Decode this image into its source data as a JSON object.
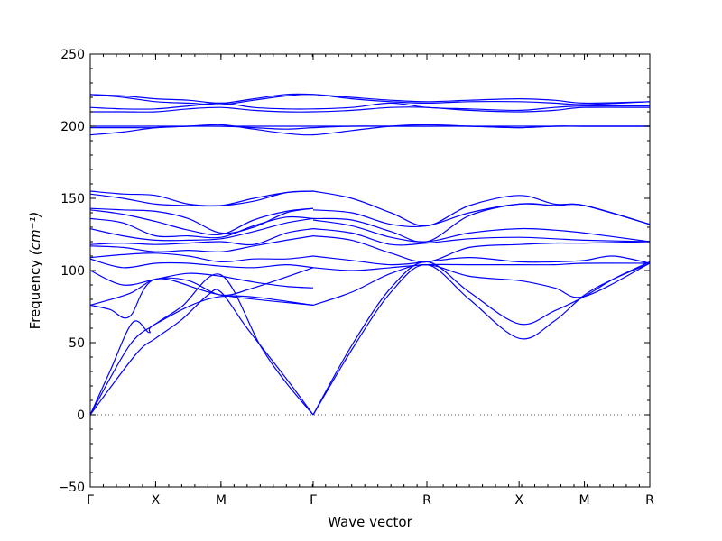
{
  "chart_data": {
    "type": "line",
    "title": "",
    "xlabel": "Wave vector",
    "ylabel_text": "Frequency",
    "ylabel_unit": "(cm⁻¹)",
    "ylim": [
      -50,
      250
    ],
    "yticks": [
      -50,
      0,
      50,
      100,
      150,
      200,
      250
    ],
    "xlim": [
      0,
      8.56
    ],
    "xticks": [
      {
        "pos": 0.0,
        "label": "Γ"
      },
      {
        "pos": 1.0,
        "label": "X"
      },
      {
        "pos": 2.0,
        "label": "M"
      },
      {
        "pos": 3.41,
        "label": "Γ"
      },
      {
        "pos": 5.15,
        "label": "R"
      },
      {
        "pos": 6.56,
        "label": "X"
      },
      {
        "pos": 7.56,
        "label": "M"
      },
      {
        "pos": 8.56,
        "label": "R"
      }
    ],
    "zero_line": 0,
    "line_color": "#0000ff",
    "grid": false,
    "legend": "none",
    "series": [
      {
        "x": [
          0,
          0.6,
          1.0,
          1.4,
          2.0,
          2.6,
          3.0,
          3.41
        ],
        "y": [
          0,
          48,
          63,
          75,
          97,
          48,
          22,
          0
        ]
      },
      {
        "x": [
          0,
          0.7,
          1.0,
          1.4,
          1.8,
          2.0,
          2.4,
          3.0,
          3.41
        ],
        "y": [
          0,
          42,
          53,
          66,
          83,
          85,
          60,
          25,
          0
        ]
      },
      {
        "x": [
          0,
          0.3,
          0.65,
          0.9,
          1.0,
          2.0,
          3.41
        ],
        "y": [
          0,
          30,
          64,
          57,
          63,
          82,
          76
        ]
      },
      {
        "x": [
          0,
          0.3,
          0.6,
          1.0,
          2.0,
          3.41
        ],
        "y": [
          76,
          73,
          68,
          94,
          83,
          76
        ]
      },
      {
        "x": [
          0,
          0.6,
          1.0,
          1.5,
          2.0,
          2.5,
          3.41
        ],
        "y": [
          76,
          84,
          94,
          93,
          83,
          88,
          102
        ]
      },
      {
        "x": [
          3.41,
          4.0,
          4.6,
          5.15,
          5.8,
          6.56,
          7.1,
          7.56,
          8.0,
          8.56
        ],
        "y": [
          0,
          45,
          85,
          104,
          80,
          53,
          65,
          83,
          94,
          105
        ]
      },
      {
        "x": [
          3.41,
          4.0,
          4.6,
          5.15,
          5.8,
          6.56,
          7.1,
          7.56,
          8.0,
          8.56
        ],
        "y": [
          0,
          48,
          88,
          106,
          85,
          63,
          72,
          82,
          94,
          106
        ]
      },
      {
        "x": [
          3.41,
          4.0,
          4.6,
          5.15,
          5.8,
          6.56,
          7.1,
          7.56,
          8.56
        ],
        "y": [
          76,
          85,
          98,
          104,
          96,
          93,
          88,
          82,
          105
        ]
      },
      {
        "x": [
          3.41,
          4.0,
          4.6,
          5.15,
          5.8,
          6.56,
          7.1,
          7.56,
          8.56
        ],
        "y": [
          102,
          100,
          102,
          104,
          104,
          104,
          104,
          105,
          105
        ]
      },
      {
        "x": [
          3.41,
          4.0,
          4.6,
          5.15,
          5.8,
          6.56,
          7.1,
          7.56,
          8.0,
          8.56
        ],
        "y": [
          110,
          107,
          104,
          106,
          109,
          106,
          106,
          107,
          110,
          105
        ]
      },
      {
        "x": [
          3.41,
          4.0,
          4.6,
          5.15,
          5.8,
          6.56,
          7.1,
          7.56,
          8.56
        ],
        "y": [
          124,
          121,
          112,
          106,
          116,
          118,
          119,
          119,
          120
        ]
      },
      {
        "x": [
          3.41,
          4.0,
          4.6,
          5.15,
          5.8,
          6.56,
          7.1,
          7.56,
          8.56
        ],
        "y": [
          129,
          126,
          118,
          119,
          122,
          123,
          122,
          121,
          120
        ]
      },
      {
        "x": [
          3.41,
          4.0,
          4.6,
          5.15,
          5.8,
          6.56,
          7.1,
          7.56,
          8.56
        ],
        "y": [
          135,
          131,
          123,
          120,
          126,
          129,
          128,
          126,
          120
        ]
      },
      {
        "x": [
          3.41,
          4.0,
          4.6,
          5.15,
          5.8,
          6.56,
          7.1,
          7.56,
          8.56
        ],
        "y": [
          136,
          135,
          127,
          120,
          138,
          146,
          145,
          145,
          132
        ]
      },
      {
        "x": [
          3.41,
          4.0,
          4.6,
          5.15,
          5.8,
          6.56,
          7.1,
          7.56,
          8.56
        ],
        "y": [
          142,
          140,
          132,
          131,
          140,
          146,
          145,
          145,
          132
        ]
      },
      {
        "x": [
          3.41,
          4.0,
          4.6,
          5.15,
          5.8,
          6.56,
          7.1,
          7.56,
          8.56
        ],
        "y": [
          155,
          150,
          140,
          131,
          145,
          152,
          146,
          145,
          132
        ]
      },
      {
        "x": [
          0,
          0.5,
          1.0,
          1.5,
          2.0,
          2.5,
          3.0,
          3.41
        ],
        "y": [
          155,
          153,
          152,
          146,
          145,
          148,
          154,
          155
        ]
      },
      {
        "x": [
          0,
          0.5,
          1.0,
          1.5,
          2.0,
          2.5,
          3.0,
          3.41
        ],
        "y": [
          153,
          150,
          146,
          145,
          145,
          150,
          154,
          155
        ]
      },
      {
        "x": [
          0,
          0.5,
          1.0,
          1.5,
          2.0,
          2.5,
          3.0,
          3.41
        ],
        "y": [
          143,
          142,
          141,
          136,
          126,
          130,
          140,
          143
        ]
      },
      {
        "x": [
          0,
          0.5,
          1.0,
          1.5,
          2.0,
          2.5,
          3.0,
          3.41
        ],
        "y": [
          142,
          139,
          134,
          128,
          125,
          135,
          141,
          143
        ]
      },
      {
        "x": [
          0,
          0.5,
          1.0,
          1.5,
          2.0,
          2.5,
          3.0,
          3.41
        ],
        "y": [
          136,
          133,
          124,
          124,
          123,
          131,
          137,
          136
        ]
      },
      {
        "x": [
          0,
          0.5,
          1.0,
          1.5,
          2.0,
          2.5,
          3.0,
          3.41
        ],
        "y": [
          129,
          124,
          121,
          121,
          122,
          127,
          133,
          136
        ]
      },
      {
        "x": [
          0,
          0.5,
          1.0,
          1.5,
          2.0,
          2.5,
          3.0,
          3.41
        ],
        "y": [
          118,
          119,
          118,
          119,
          120,
          118,
          126,
          129
        ]
      },
      {
        "x": [
          0,
          0.5,
          1.0,
          1.5,
          2.0,
          2.5,
          3.0,
          3.41
        ],
        "y": [
          117,
          116,
          113,
          114,
          113,
          117,
          121,
          124
        ]
      },
      {
        "x": [
          0,
          0.5,
          1.0,
          1.5,
          2.0,
          2.5,
          3.0,
          3.41
        ],
        "y": [
          109,
          111,
          112,
          110,
          106,
          108,
          108,
          110
        ]
      },
      {
        "x": [
          0,
          0.5,
          1.0,
          1.5,
          2.0,
          2.5,
          3.0,
          3.41
        ],
        "y": [
          108,
          102,
          105,
          105,
          103,
          102,
          104,
          102
        ]
      },
      {
        "x": [
          0,
          0.5,
          1.0,
          1.5,
          2.0,
          2.5,
          3.0,
          3.41
        ],
        "y": [
          100,
          90,
          94,
          98,
          96,
          92,
          89,
          88
        ]
      },
      {
        "x": [
          0,
          0.5,
          1.0,
          1.5,
          2.0,
          2.5,
          3.0,
          3.41,
          4.0,
          4.6,
          5.15,
          5.8,
          6.56,
          7.1,
          7.56,
          8.56
        ],
        "y": [
          222,
          221,
          219,
          218,
          216,
          219,
          222,
          222,
          220,
          218,
          217,
          218,
          219,
          218,
          216,
          217
        ]
      },
      {
        "x": [
          0,
          0.5,
          1.0,
          1.5,
          2.0,
          2.5,
          3.0,
          3.41,
          4.0,
          4.6,
          5.15,
          5.8,
          6.56,
          7.1,
          7.56,
          8.56
        ],
        "y": [
          222,
          220,
          217,
          216,
          215,
          218,
          221,
          222,
          219,
          217,
          216,
          217,
          217,
          216,
          215,
          217
        ]
      },
      {
        "x": [
          0,
          0.5,
          1.0,
          1.5,
          2.0,
          2.5,
          3.0,
          3.41,
          4.0,
          4.6,
          5.15,
          5.8,
          6.56,
          7.1,
          7.56,
          8.56
        ],
        "y": [
          213,
          212,
          212,
          214,
          216,
          213,
          212,
          212,
          213,
          216,
          213,
          212,
          211,
          213,
          214,
          214
        ]
      },
      {
        "x": [
          0,
          0.5,
          1.0,
          1.5,
          2.0,
          2.5,
          3.0,
          3.41,
          4.0,
          4.6,
          5.15,
          5.8,
          6.56,
          7.1,
          7.56,
          8.56
        ],
        "y": [
          210,
          210,
          210,
          212,
          213,
          211,
          210,
          210,
          211,
          213,
          213,
          211,
          210,
          211,
          213,
          213
        ]
      },
      {
        "x": [
          0,
          0.5,
          1.0,
          1.5,
          2.0,
          2.5,
          3.0,
          3.41,
          4.0,
          4.6,
          5.15,
          5.8,
          6.56,
          7.1,
          7.56,
          8.56
        ],
        "y": [
          200,
          200,
          200,
          200,
          200,
          200,
          200,
          200,
          200,
          200,
          200,
          200,
          200,
          200,
          200,
          200
        ]
      },
      {
        "x": [
          0,
          0.5,
          1.0,
          1.5,
          2.0,
          2.5,
          3.0,
          3.41,
          4.0,
          4.6,
          5.15,
          5.8,
          6.56,
          7.1,
          7.56,
          8.56
        ],
        "y": [
          199,
          199,
          199,
          200,
          200,
          199,
          198,
          199,
          200,
          200,
          200,
          200,
          199,
          200,
          200,
          200
        ]
      },
      {
        "x": [
          0,
          0.5,
          1.0,
          1.5,
          2.0,
          2.5,
          3.0,
          3.41,
          4.0,
          4.6,
          5.15,
          5.8,
          6.56,
          7.1,
          7.56,
          8.56
        ],
        "y": [
          194,
          196,
          199,
          200,
          201,
          198,
          195,
          194,
          197,
          200,
          201,
          200,
          199,
          200,
          200,
          200
        ]
      }
    ]
  }
}
